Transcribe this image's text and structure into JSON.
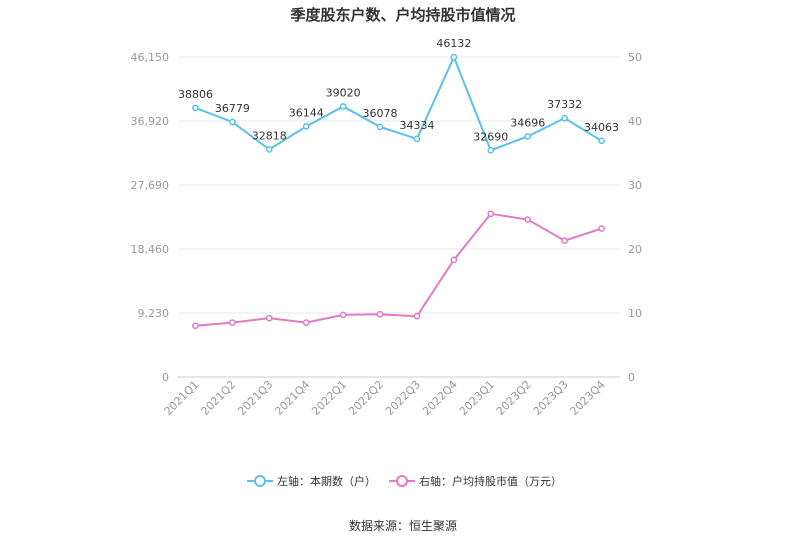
{
  "chart_data": {
    "type": "line",
    "title": "季度股东户数、户均持股市值情况",
    "categories": [
      "2021Q1",
      "2021Q2",
      "2021Q3",
      "2021Q4",
      "2022Q1",
      "2022Q2",
      "2022Q3",
      "2022Q4",
      "2023Q1",
      "2023Q2",
      "2023Q3",
      "2023Q4"
    ],
    "left_axis": {
      "ticks": [
        "0",
        "9,230",
        "18,460",
        "27,690",
        "36,920",
        "46,150"
      ],
      "ylim": [
        0,
        46150
      ]
    },
    "right_axis": {
      "ticks": [
        "0",
        "10",
        "20",
        "30",
        "40",
        "50"
      ],
      "ylim": [
        0,
        50
      ]
    },
    "series": [
      {
        "name": "左轴：本期数（户）",
        "axis": "left",
        "color": "#5bc0eb",
        "values": [
          38806,
          36779,
          32818,
          36144,
          39020,
          36078,
          34334,
          46132,
          32690,
          34696,
          37332,
          34063
        ],
        "labels": [
          "38806",
          "36779",
          "32818",
          "36144",
          "39020",
          "36078",
          "34334",
          "46132",
          "32690",
          "34696",
          "37332",
          "34063"
        ]
      },
      {
        "name": "右轴：户均持股市值（万元）",
        "axis": "right",
        "color": "#e07bc4",
        "values": [
          8.0,
          8.5,
          9.2,
          8.5,
          9.7,
          9.8,
          9.5,
          18.3,
          25.5,
          24.6,
          21.3,
          23.2
        ]
      }
    ],
    "grid": true,
    "legend_position": "bottom"
  },
  "footer": {
    "source": "数据来源：恒生聚源"
  }
}
